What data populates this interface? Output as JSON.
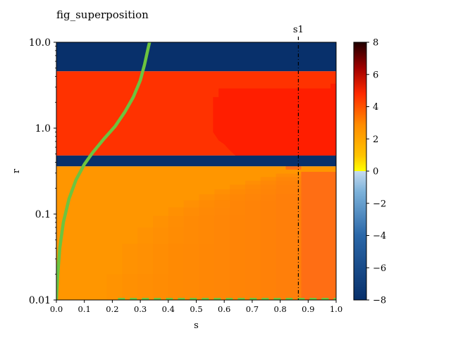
{
  "chart_data": {
    "type": "heatmap",
    "title": "fig_superposition",
    "xlabel": "s",
    "ylabel": "r",
    "x_range": [
      0.0,
      1.0
    ],
    "y_range": [
      0.01,
      10.0
    ],
    "y_scale": "log",
    "x_ticks": [
      "0.0",
      "0.1",
      "0.2",
      "0.3",
      "0.4",
      "0.5",
      "0.6",
      "0.7",
      "0.8",
      "0.9",
      "1.0"
    ],
    "y_ticks": [
      {
        "value": 0.01,
        "label": "0.01"
      },
      {
        "value": 0.1,
        "label": "0.1"
      },
      {
        "value": 1.0,
        "label": "1.0"
      },
      {
        "value": 10.0,
        "label": "10.0"
      }
    ],
    "colorbar": {
      "range": [
        -8,
        8
      ],
      "ticks": [
        "8",
        "6",
        "4",
        "2",
        "0",
        "−2",
        "−4",
        "−6",
        "−8"
      ],
      "tick_values": [
        8,
        6,
        4,
        2,
        0,
        -2,
        -4,
        -6,
        -8
      ]
    },
    "bands": [
      {
        "r_min": 4.6,
        "r_max": 10.0,
        "value": -8
      },
      {
        "r_min": 0.36,
        "r_max": 0.48,
        "value": -8
      }
    ],
    "regions": [
      {
        "name": "upper-field",
        "value": 3.5
      },
      {
        "name": "upper-plateau",
        "value": 3.8
      },
      {
        "name": "lower-field",
        "value": 2.4
      },
      {
        "name": "lower-right",
        "value": 2.9
      }
    ],
    "vertical_line": {
      "x": 0.865,
      "label": "s1",
      "style": "dash-dot"
    },
    "curve": {
      "color": "#6cc43f",
      "points": [
        [
          0.0,
          0.01
        ],
        [
          0.005,
          0.02
        ],
        [
          0.012,
          0.04
        ],
        [
          0.025,
          0.08
        ],
        [
          0.045,
          0.15
        ],
        [
          0.07,
          0.25
        ],
        [
          0.1,
          0.38
        ],
        [
          0.13,
          0.52
        ],
        [
          0.17,
          0.75
        ],
        [
          0.21,
          1.05
        ],
        [
          0.245,
          1.55
        ],
        [
          0.275,
          2.3
        ],
        [
          0.3,
          3.6
        ],
        [
          0.315,
          5.5
        ],
        [
          0.328,
          8.5
        ],
        [
          0.333,
          10.0
        ]
      ]
    },
    "bottom_ticks_dashed": {
      "color": "#6cc43f",
      "r": 0.01,
      "x_start": 0.22,
      "x_end": 1.0
    }
  }
}
